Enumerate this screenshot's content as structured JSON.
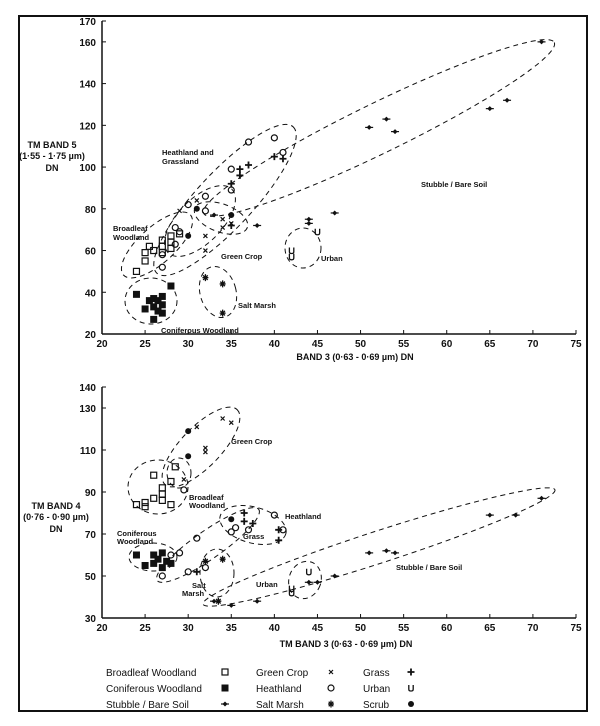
{
  "chart_data": [
    {
      "type": "scatter",
      "ylabel_lines": [
        "TM BAND 5",
        "(1·55 - 1·75 µm)",
        "DN"
      ],
      "xlabel": "BAND 3 (0·63 - 0·69 µm) DN",
      "xlim": [
        20,
        75
      ],
      "ylim": [
        20,
        170
      ],
      "xticks": [
        20,
        25,
        30,
        35,
        40,
        45,
        50,
        55,
        60,
        65,
        70,
        75
      ],
      "yticks": [
        20,
        40,
        60,
        80,
        100,
        120,
        140,
        160,
        170
      ],
      "grid": false,
      "annotations": [
        "Heathland and",
        "Grassland",
        "Broadleaf",
        "Woodland",
        "Green Crop",
        "Urban",
        "Salt Marsh",
        "Coniferous Woodland",
        "Stubble / Bare Soil"
      ],
      "series": [
        {
          "name": "Broadleaf Woodland",
          "marker": "open-square",
          "points": [
            [
              24,
              50
            ],
            [
              25,
              55
            ],
            [
              25,
              59
            ],
            [
              25.5,
              62
            ],
            [
              26,
              60
            ],
            [
              27,
              65
            ],
            [
              27,
              62
            ],
            [
              27,
              59
            ],
            [
              28,
              67
            ],
            [
              28,
              64
            ],
            [
              28,
              61
            ],
            [
              29,
              68
            ]
          ]
        },
        {
          "name": "Coniferous Woodland",
          "marker": "filled-square",
          "points": [
            [
              24,
              39
            ],
            [
              25,
              32
            ],
            [
              25.5,
              36
            ],
            [
              26,
              33
            ],
            [
              26,
              37
            ],
            [
              26.5,
              36
            ],
            [
              26.5,
              31
            ],
            [
              27,
              38
            ],
            [
              27,
              34
            ],
            [
              27,
              30
            ],
            [
              28,
              43
            ],
            [
              26,
              27
            ]
          ]
        },
        {
          "name": "Heathland",
          "marker": "open-circle",
          "points": [
            [
              27,
              52
            ],
            [
              27,
              58
            ],
            [
              28.5,
              71
            ],
            [
              28.5,
              63
            ],
            [
              30,
              82
            ],
            [
              32,
              86
            ],
            [
              32,
              79
            ],
            [
              35,
              99
            ],
            [
              35,
              89
            ],
            [
              37,
              112
            ],
            [
              40,
              114
            ],
            [
              41,
              107
            ],
            [
              29,
              69
            ]
          ]
        },
        {
          "name": "Green Crop",
          "marker": "x",
          "points": [
            [
              29,
              79
            ],
            [
              31,
              84
            ],
            [
              32,
              67
            ],
            [
              32,
              60
            ],
            [
              34,
              75
            ],
            [
              34,
              71
            ],
            [
              35,
              73
            ]
          ]
        },
        {
          "name": "Grass",
          "marker": "plus",
          "points": [
            [
              35,
              92
            ],
            [
              36,
              99
            ],
            [
              36,
              96
            ],
            [
              37,
              101
            ],
            [
              40,
              105
            ],
            [
              41,
              104
            ],
            [
              35,
              72
            ]
          ]
        },
        {
          "name": "Salt Marsh",
          "marker": "star",
          "points": [
            [
              32,
              47
            ],
            [
              34,
              44
            ],
            [
              34,
              30
            ]
          ]
        },
        {
          "name": "Urban",
          "marker": "u",
          "points": [
            [
              42,
              60
            ],
            [
              42,
              57
            ],
            [
              45,
              69
            ]
          ]
        },
        {
          "name": "Stubble / Bare Soil",
          "marker": "diamond",
          "points": [
            [
              33,
              77
            ],
            [
              38,
              72
            ],
            [
              44,
              75
            ],
            [
              44,
              73
            ],
            [
              47,
              78
            ],
            [
              51,
              119
            ],
            [
              53,
              123
            ],
            [
              54,
              117
            ],
            [
              65,
              128
            ],
            [
              67,
              132
            ],
            [
              71,
              160
            ]
          ]
        },
        {
          "name": "Scrub",
          "marker": "filled-circle",
          "points": [
            [
              31,
              80
            ],
            [
              30,
              67
            ],
            [
              35,
              77
            ]
          ]
        }
      ]
    },
    {
      "type": "scatter",
      "ylabel_lines": [
        "TM BAND 4",
        "(0·76 - 0·90 µm)",
        "DN"
      ],
      "xlabel": "TM BAND 3 (0·63 - 0·69 µm) DN",
      "xlim": [
        20,
        75
      ],
      "ylim": [
        30,
        140
      ],
      "xticks": [
        20,
        25,
        30,
        35,
        40,
        45,
        50,
        55,
        60,
        65,
        70,
        75
      ],
      "yticks": [
        30,
        50,
        70,
        90,
        110,
        130,
        140
      ],
      "grid": false,
      "annotations": [
        "Green Crop",
        "Broadleaf",
        "Woodland",
        "Heathland",
        "Grass",
        "Coniferous",
        "Woodland",
        "Salt",
        "Marsh",
        "Urban",
        "Stubble / Bare Soil"
      ],
      "series": [
        {
          "name": "Broadleaf Woodland",
          "marker": "open-square",
          "points": [
            [
              24,
              84
            ],
            [
              25,
              85
            ],
            [
              25,
              83
            ],
            [
              26,
              87
            ],
            [
              26,
              98
            ],
            [
              27,
              92
            ],
            [
              27,
              89
            ],
            [
              27,
              86
            ],
            [
              28,
              84
            ],
            [
              28,
              95
            ],
            [
              28.5,
              102
            ]
          ]
        },
        {
          "name": "Coniferous Woodland",
          "marker": "filled-square",
          "points": [
            [
              24,
              60
            ],
            [
              25,
              55
            ],
            [
              26,
              56
            ],
            [
              26,
              60
            ],
            [
              26.5,
              58
            ],
            [
              27,
              54
            ],
            [
              27,
              61
            ],
            [
              27.5,
              57
            ],
            [
              28,
              56
            ]
          ]
        },
        {
          "name": "Heathland",
          "marker": "open-circle",
          "points": [
            [
              27,
              50
            ],
            [
              28,
              60
            ],
            [
              29,
              61
            ],
            [
              31,
              68
            ],
            [
              30,
              52
            ],
            [
              32,
              54
            ],
            [
              35,
              71
            ],
            [
              35.5,
              73
            ],
            [
              37,
              72
            ],
            [
              40,
              79
            ],
            [
              41,
              72
            ],
            [
              29.5,
              91
            ]
          ]
        },
        {
          "name": "Green Crop",
          "marker": "x",
          "points": [
            [
              29.5,
              96
            ],
            [
              31,
              121
            ],
            [
              32,
              111
            ],
            [
              32,
              109
            ],
            [
              34,
              125
            ],
            [
              35,
              123
            ]
          ]
        },
        {
          "name": "Grass",
          "marker": "plus",
          "points": [
            [
              36.5,
              80
            ],
            [
              36.5,
              76
            ],
            [
              37.5,
              75
            ],
            [
              40.5,
              72
            ],
            [
              40.5,
              67
            ],
            [
              31,
              52
            ]
          ]
        },
        {
          "name": "Salt Marsh",
          "marker": "star",
          "points": [
            [
              32,
              57
            ],
            [
              34,
              58
            ],
            [
              33.5,
              38
            ]
          ]
        },
        {
          "name": "Urban",
          "marker": "u",
          "points": [
            [
              44,
              52
            ],
            [
              42,
              44
            ],
            [
              42,
              42
            ]
          ]
        },
        {
          "name": "Stubble / Bare Soil",
          "marker": "diamond",
          "points": [
            [
              33,
              38
            ],
            [
              35,
              36
            ],
            [
              38,
              38
            ],
            [
              44,
              47
            ],
            [
              45,
              47
            ],
            [
              47,
              50
            ],
            [
              51,
              61
            ],
            [
              53,
              62
            ],
            [
              54,
              61
            ],
            [
              65,
              79
            ],
            [
              68,
              79
            ],
            [
              71,
              87
            ]
          ]
        },
        {
          "name": "Scrub",
          "marker": "filled-circle",
          "points": [
            [
              30,
              119
            ],
            [
              30,
              107
            ],
            [
              35,
              77
            ]
          ]
        }
      ]
    }
  ],
  "legend": [
    {
      "label": "Broadleaf Woodland",
      "marker": "open-square"
    },
    {
      "label": "Green Crop",
      "marker": "x"
    },
    {
      "label": "Grass",
      "marker": "plus"
    },
    {
      "label": "Coniferous Woodland",
      "marker": "filled-square"
    },
    {
      "label": "Heathland",
      "marker": "open-circle"
    },
    {
      "label": "Urban",
      "marker": "u"
    },
    {
      "label": "Stubble / Bare Soil",
      "marker": "diamond"
    },
    {
      "label": "Salt Marsh",
      "marker": "star"
    },
    {
      "label": "Scrub",
      "marker": "filled-circle"
    }
  ]
}
